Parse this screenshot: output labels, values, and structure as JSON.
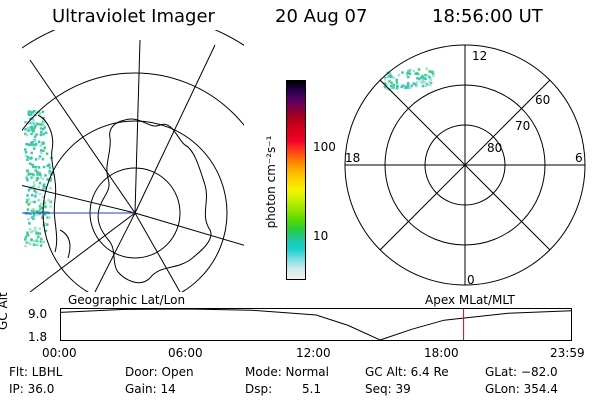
{
  "header": {
    "instrument": "Ultraviolet Imager",
    "date": "20 Aug 07",
    "time": "18:56:00 UT"
  },
  "colorbar": {
    "label": "photon cm⁻²s⁻¹",
    "ticks": [
      "100",
      "10"
    ],
    "colors": [
      "#000000",
      "#2a004a",
      "#5b0062",
      "#8a0036",
      "#b5001b",
      "#d9001a",
      "#f0002a",
      "#ff3a1a",
      "#ff7a00",
      "#ffae00",
      "#ffd400",
      "#f4f400",
      "#c8f000",
      "#96e600",
      "#5bd900",
      "#26cc3c",
      "#1fc9a0",
      "#19d0cf",
      "#7fdde0",
      "#cfeaea",
      "#f2f2f2"
    ]
  },
  "left_map": {
    "pixel_color": "#39c6b3"
  },
  "right_dial": {
    "mlt_labels": [
      "12",
      "18",
      "6",
      "0"
    ],
    "lat_labels": [
      "60",
      "70",
      "80"
    ]
  },
  "orbit": {
    "left_label": "Geographic Lat/Lon",
    "right_label": "Apex MLat/MLT",
    "y_axis_label": "GC Alt",
    "y_ticks": [
      "9.0",
      "1.8"
    ],
    "x_ticks": [
      "00:00",
      "06:00",
      "12:00",
      "18:00",
      "23:59"
    ],
    "current_time_fraction": 0.7889,
    "altitude_profile_hours": [
      0,
      3,
      6,
      9,
      12,
      13.5,
      15,
      16.5,
      18,
      21,
      23.98
    ],
    "altitude_profile_re": [
      8.2,
      8.9,
      9.0,
      8.7,
      7.6,
      5.2,
      1.8,
      4.3,
      6.4,
      8.0,
      8.6
    ]
  },
  "info": {
    "flt": "Flt: LBHL",
    "door": "Door: Open",
    "mode": "Mode: Normal",
    "gc_alt": "GC Alt: 6.4 Re",
    "glat": "GLat: −82.0",
    "ip": "IP: 36.0",
    "gain": "Gain: 14",
    "dsp_label": "Dsp:",
    "dsp_value": "5.1",
    "seq": "Seq: 39",
    "glon": "GLon: 354.4"
  }
}
